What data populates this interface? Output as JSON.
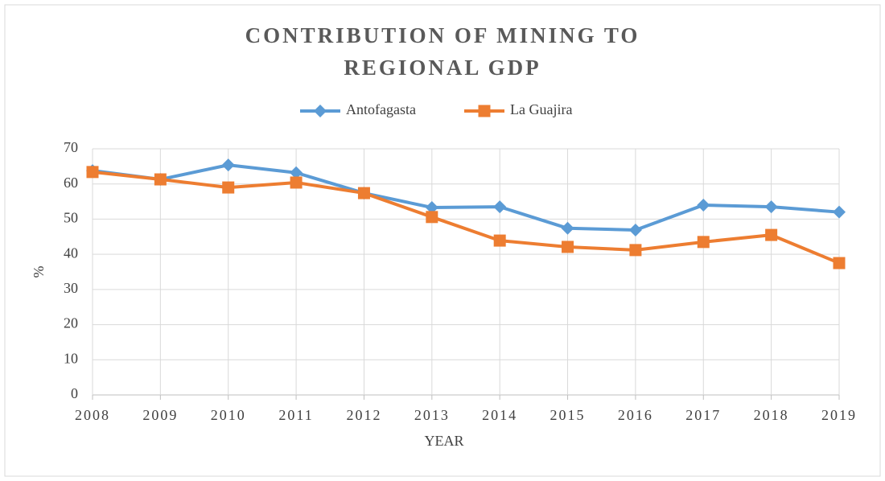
{
  "chart_data": {
    "type": "line",
    "title": "CONTRIBUTION OF MINING TO REGIONAL GDP",
    "x_label": "YEAR",
    "y_label": "%",
    "categories": [
      "2008",
      "2009",
      "2010",
      "2011",
      "2012",
      "2013",
      "2014",
      "2015",
      "2016",
      "2017",
      "2018",
      "2019"
    ],
    "series": [
      {
        "name": "Antofagasta",
        "color": "#5b9bd5",
        "marker": "diamond",
        "values": [
          63.8,
          61.3,
          65.4,
          63.2,
          57.4,
          53.3,
          53.5,
          47.4,
          46.9,
          54.0,
          53.5,
          52.0
        ]
      },
      {
        "name": "La Guajira",
        "color": "#ed7d31",
        "marker": "square",
        "values": [
          63.4,
          61.3,
          59.0,
          60.4,
          57.4,
          50.6,
          43.9,
          42.1,
          41.2,
          43.5,
          45.5,
          37.5
        ]
      }
    ],
    "ylim": [
      0,
      70
    ],
    "yticks": [
      0,
      10,
      20,
      30,
      40,
      50,
      60,
      70
    ],
    "grid": true,
    "legend": "top"
  }
}
